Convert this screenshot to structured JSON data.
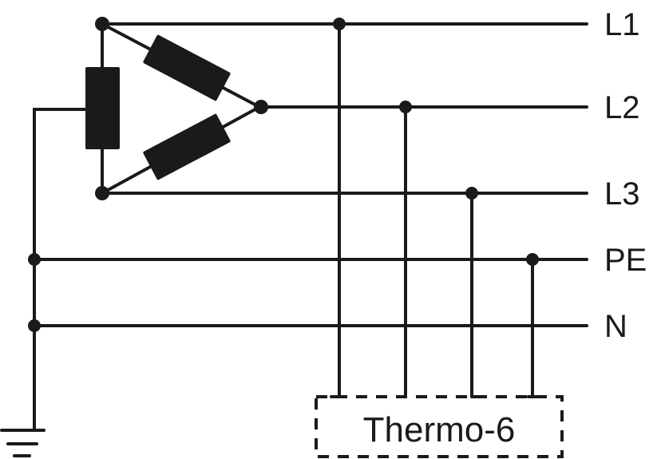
{
  "lines": [
    {
      "id": "l1",
      "label": "L1"
    },
    {
      "id": "l2",
      "label": "L2"
    },
    {
      "id": "l3",
      "label": "L3"
    },
    {
      "id": "pe",
      "label": "PE"
    },
    {
      "id": "n",
      "label": "N"
    }
  ],
  "device": {
    "label": "Thermo-6"
  },
  "colors": {
    "ink": "#1a1a1a",
    "background": "#ffffff"
  }
}
